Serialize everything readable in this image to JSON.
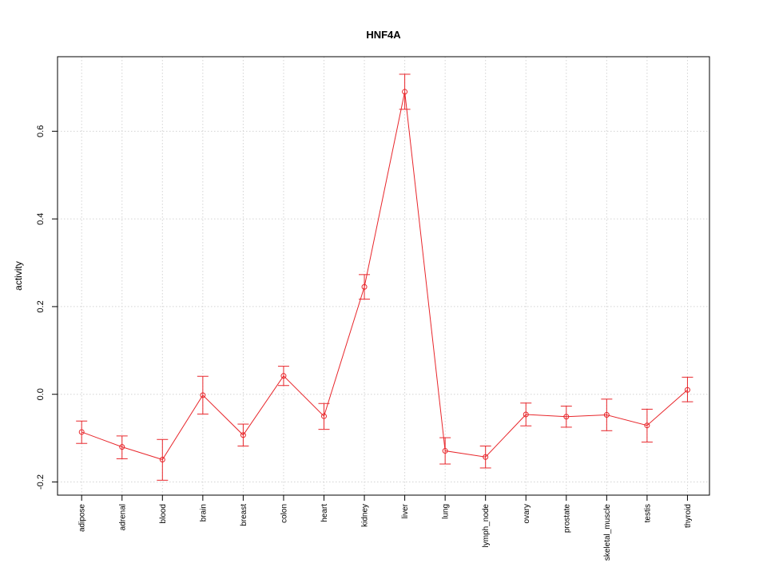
{
  "chart_data": {
    "type": "line",
    "title": "HNF4A",
    "xlabel": "",
    "ylabel": "activity",
    "ylim": [
      -0.23,
      0.77
    ],
    "yticks": [
      -0.2,
      0.0,
      0.2,
      0.4,
      0.6
    ],
    "ytick_labels": [
      "-0.2",
      "0.0",
      "0.2",
      "0.4",
      "0.6"
    ],
    "grid": true,
    "legend": "none",
    "color": "#e8262b",
    "categories": [
      "adipose",
      "adrenal",
      "blood",
      "brain",
      "breast",
      "colon",
      "heart",
      "kidney",
      "liver",
      "lung",
      "lymph_node",
      "ovary",
      "prostate",
      "skeletal_muscle",
      "testis",
      "thyroid"
    ],
    "values": [
      -0.086,
      -0.12,
      -0.149,
      -0.002,
      -0.093,
      0.042,
      -0.05,
      0.245,
      0.69,
      -0.129,
      -0.143,
      -0.046,
      -0.051,
      -0.047,
      -0.071,
      0.01
    ],
    "error_lower": [
      -0.112,
      -0.147,
      -0.196,
      -0.045,
      -0.118,
      0.02,
      -0.08,
      0.217,
      0.65,
      -0.159,
      -0.168,
      -0.072,
      -0.075,
      -0.083,
      -0.109,
      -0.017
    ],
    "error_upper": [
      -0.061,
      -0.095,
      -0.103,
      0.041,
      -0.068,
      0.064,
      -0.021,
      0.273,
      0.73,
      -0.099,
      -0.118,
      -0.02,
      -0.027,
      -0.011,
      -0.034,
      0.039
    ]
  }
}
